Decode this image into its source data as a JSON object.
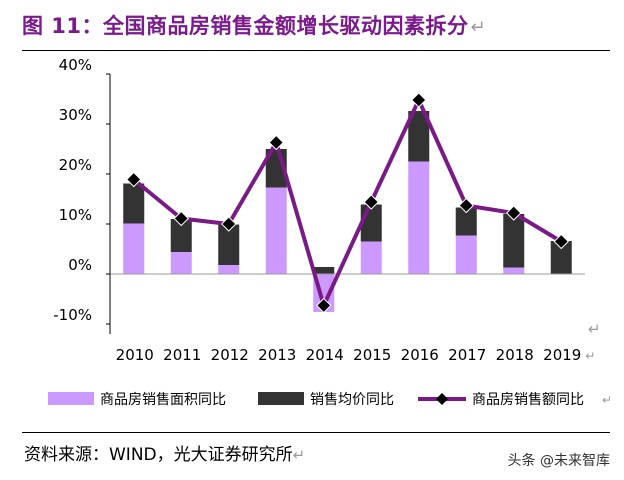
{
  "header": {
    "title": "图 11：全国商品房销售金额增长驱动因素拆分"
  },
  "footer": {
    "source": "资料来源：WIND，光大证券研究所",
    "watermark": "头条 @未来智库"
  },
  "colors": {
    "title": "#7b1a8c",
    "area_bar": "#cc99ff",
    "price_bar": "#333333",
    "line": "#7a1a87",
    "marker": "#000000"
  },
  "chart_data": {
    "type": "bar",
    "stacked": true,
    "categories": [
      "2010",
      "2011",
      "2012",
      "2013",
      "2014",
      "2015",
      "2016",
      "2017",
      "2018",
      "2019"
    ],
    "series": [
      {
        "name": "商品房销售面积同比",
        "kind": "bar",
        "values": [
          10.1,
          4.4,
          1.8,
          17.3,
          -7.6,
          6.5,
          22.5,
          7.7,
          1.3,
          -0.1
        ]
      },
      {
        "name": "销售均价同比",
        "kind": "bar",
        "values": [
          8.0,
          6.6,
          8.1,
          7.7,
          1.4,
          7.4,
          10.1,
          5.6,
          10.7,
          6.6
        ]
      },
      {
        "name": "商品房销售额同比",
        "kind": "line",
        "values": [
          18.9,
          11.1,
          10.0,
          26.3,
          -6.3,
          14.4,
          34.8,
          13.7,
          12.2,
          6.5
        ]
      }
    ],
    "y_ticks": [
      "40%",
      "30%",
      "20%",
      "10%",
      "0%",
      "-10%"
    ],
    "y_tick_values": [
      40,
      30,
      20,
      10,
      0,
      -10
    ],
    "ylim": [
      -10,
      40
    ],
    "grid": false,
    "legend": "bottom"
  }
}
